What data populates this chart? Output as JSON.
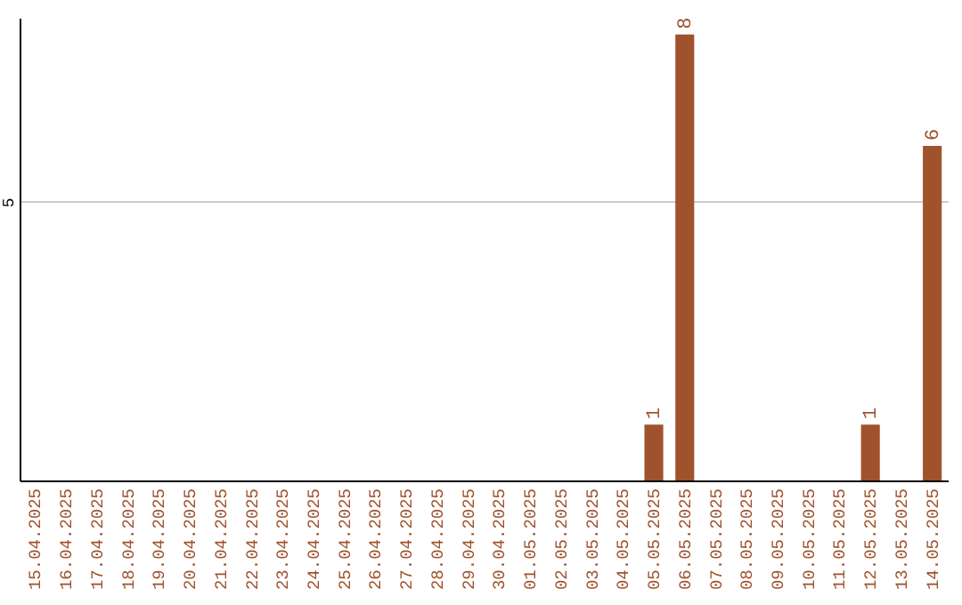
{
  "chart_data": {
    "type": "bar",
    "categories": [
      "15.04.2025",
      "16.04.2025",
      "17.04.2025",
      "18.04.2025",
      "19.04.2025",
      "20.04.2025",
      "21.04.2025",
      "22.04.2025",
      "23.04.2025",
      "24.04.2025",
      "25.04.2025",
      "26.04.2025",
      "27.04.2025",
      "28.04.2025",
      "29.04.2025",
      "30.04.2025",
      "01.05.2025",
      "02.05.2025",
      "03.05.2025",
      "04.05.2025",
      "05.05.2025",
      "06.05.2025",
      "07.05.2025",
      "08.05.2025",
      "09.05.2025",
      "10.05.2025",
      "11.05.2025",
      "12.05.2025",
      "13.05.2025",
      "14.05.2025"
    ],
    "values": [
      null,
      null,
      null,
      null,
      null,
      null,
      null,
      null,
      null,
      null,
      null,
      null,
      null,
      null,
      null,
      null,
      null,
      null,
      null,
      null,
      1,
      8,
      null,
      null,
      null,
      null,
      null,
      1,
      null,
      6
    ],
    "color": "#a0522d",
    "ylim": [
      0,
      8.3
    ],
    "yticks": [
      5
    ],
    "grid": "y",
    "data_labels": true
  }
}
